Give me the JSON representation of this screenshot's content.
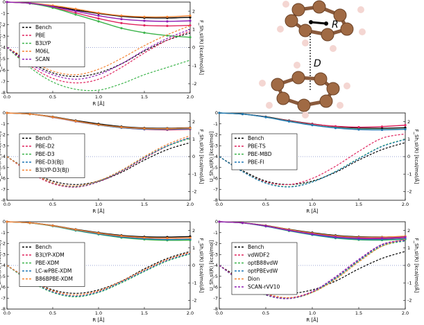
{
  "figure": {
    "x_axis_label": "R [Å]",
    "left_axis_label": "U_Sh,sl(R) [kcal/mol]",
    "right_axis_label": "F_Sh,sl(R) [kcal/mol/Å]",
    "x_ticks": [
      "0.0",
      "0.5",
      "1.0",
      "1.5",
      "2.0"
    ],
    "left_ticks": [
      "0",
      "-1",
      "-2",
      "-3",
      "-4",
      "-5",
      "-6",
      "-7",
      "-8"
    ],
    "right_ticks": [
      "2",
      "1",
      "0",
      "-1",
      "-2"
    ],
    "molecule": {
      "label_R": "R",
      "label_D": "D"
    }
  },
  "chart_data": [
    {
      "type": "line",
      "panel": "top-left",
      "x": [
        0.0,
        0.25,
        0.5,
        0.75,
        1.0,
        1.25,
        1.5,
        1.75,
        2.0
      ],
      "xlim": [
        0,
        2
      ],
      "ylim_left": [
        -8,
        0
      ],
      "ylim_right": [
        -2.5,
        2.5
      ],
      "legend_position": "left",
      "series": [
        {
          "name": "Bench",
          "color": "#000000",
          "energy": [
            0,
            -0.1,
            -0.35,
            -0.7,
            -1.0,
            -1.25,
            -1.38,
            -1.4,
            -1.35
          ],
          "force": [
            0,
            -0.8,
            -1.4,
            -1.6,
            -1.4,
            -0.9,
            -0.2,
            0.4,
            0.8
          ]
        },
        {
          "name": "PBE",
          "color": "#e0245e",
          "energy": [
            0,
            -0.12,
            -0.45,
            -0.95,
            -1.45,
            -1.85,
            -2.05,
            -2.1,
            -2.05
          ],
          "force": [
            0,
            -1.0,
            -1.7,
            -1.95,
            -1.75,
            -1.1,
            -0.3,
            0.4,
            0.9
          ]
        },
        {
          "name": "B3LYP",
          "color": "#3cb44b",
          "energy": [
            0,
            -0.12,
            -0.5,
            -1.1,
            -1.7,
            -2.3,
            -2.7,
            -2.95,
            -3.1
          ],
          "force": [
            0,
            -1.1,
            -1.9,
            -2.3,
            -2.35,
            -2.0,
            -1.5,
            -1.1,
            -0.7
          ]
        },
        {
          "name": "M06L",
          "color": "#f58231",
          "energy": [
            0,
            -0.08,
            -0.3,
            -0.6,
            -0.95,
            -1.2,
            -1.3,
            -1.3,
            -1.2
          ],
          "force": [
            0,
            -0.7,
            -1.3,
            -1.5,
            -1.2,
            -0.6,
            0.1,
            0.7,
            1.2
          ]
        },
        {
          "name": "SCAN",
          "color": "#911eb4",
          "energy": [
            0,
            -0.1,
            -0.4,
            -0.8,
            -1.2,
            -1.5,
            -1.65,
            -1.7,
            -1.65
          ],
          "force": [
            0,
            -0.9,
            -1.5,
            -1.75,
            -1.5,
            -0.9,
            -0.15,
            0.5,
            1.0
          ]
        }
      ]
    },
    {
      "type": "line",
      "panel": "middle-left",
      "x": [
        0.0,
        0.25,
        0.5,
        0.75,
        1.0,
        1.25,
        1.5,
        1.75,
        2.0
      ],
      "xlim": [
        0,
        2
      ],
      "ylim_left": [
        -8,
        0
      ],
      "ylim_right": [
        -2.5,
        2.5
      ],
      "legend_position": "left",
      "series": [
        {
          "name": "Bench",
          "color": "#000000",
          "energy": [
            0,
            -0.1,
            -0.35,
            -0.7,
            -1.0,
            -1.25,
            -1.38,
            -1.4,
            -1.35
          ],
          "force": [
            0,
            -0.8,
            -1.4,
            -1.6,
            -1.4,
            -0.9,
            -0.2,
            0.4,
            0.8
          ]
        },
        {
          "name": "PBE-D2",
          "color": "#e0245e",
          "energy": [
            0,
            -0.1,
            -0.4,
            -0.78,
            -1.1,
            -1.35,
            -1.5,
            -1.55,
            -1.5
          ],
          "force": [
            0,
            -0.9,
            -1.55,
            -1.75,
            -1.45,
            -0.85,
            -0.1,
            0.6,
            1.1
          ]
        },
        {
          "name": "PBE-D3",
          "color": "#3cb44b",
          "energy": [
            0,
            -0.1,
            -0.38,
            -0.75,
            -1.08,
            -1.32,
            -1.45,
            -1.48,
            -1.43
          ],
          "force": [
            0,
            -0.85,
            -1.5,
            -1.7,
            -1.4,
            -0.8,
            -0.05,
            0.6,
            1.05
          ]
        },
        {
          "name": "PBE-D3(BJ)",
          "color": "#1f77b4",
          "energy": [
            0,
            -0.1,
            -0.38,
            -0.76,
            -1.1,
            -1.35,
            -1.48,
            -1.5,
            -1.45
          ],
          "force": [
            0,
            -0.85,
            -1.5,
            -1.72,
            -1.42,
            -0.82,
            -0.05,
            0.62,
            1.1
          ]
        },
        {
          "name": "B3LYP-D3(BJ)",
          "color": "#f58231",
          "energy": [
            0,
            -0.1,
            -0.37,
            -0.74,
            -1.07,
            -1.3,
            -1.42,
            -1.44,
            -1.38
          ],
          "force": [
            0,
            -0.85,
            -1.48,
            -1.68,
            -1.38,
            -0.78,
            0.0,
            0.7,
            1.2
          ]
        }
      ]
    },
    {
      "type": "line",
      "panel": "middle-right",
      "x": [
        0.0,
        0.25,
        0.5,
        0.75,
        1.0,
        1.25,
        1.5,
        1.75,
        2.0
      ],
      "xlim": [
        0,
        2
      ],
      "ylim_left": [
        -8,
        0
      ],
      "ylim_right": [
        -2.5,
        2.5
      ],
      "legend_position": "left",
      "series": [
        {
          "name": "Bench",
          "color": "#000000",
          "energy": [
            0,
            -0.1,
            -0.35,
            -0.7,
            -1.0,
            -1.25,
            -1.38,
            -1.4,
            -1.35
          ],
          "force": [
            0,
            -0.8,
            -1.4,
            -1.6,
            -1.4,
            -0.9,
            -0.2,
            0.4,
            0.8
          ]
        },
        {
          "name": "PBE-TS",
          "color": "#e0245e",
          "energy": [
            0,
            -0.1,
            -0.37,
            -0.72,
            -1.02,
            -1.22,
            -1.3,
            -1.25,
            -1.12
          ],
          "force": [
            0,
            -0.85,
            -1.45,
            -1.6,
            -1.25,
            -0.55,
            0.3,
            1.05,
            1.3
          ]
        },
        {
          "name": "PBE-MBD",
          "color": "#3cb44b",
          "energy": [
            0,
            -0.1,
            -0.38,
            -0.76,
            -1.1,
            -1.36,
            -1.5,
            -1.53,
            -1.48
          ],
          "force": [
            0,
            -0.85,
            -1.5,
            -1.72,
            -1.45,
            -0.85,
            -0.1,
            0.6,
            1.0
          ]
        },
        {
          "name": "PBE-FI",
          "color": "#1f77b4",
          "energy": [
            0,
            -0.1,
            -0.39,
            -0.78,
            -1.12,
            -1.38,
            -1.52,
            -1.55,
            -1.5
          ],
          "force": [
            0,
            -0.86,
            -1.52,
            -1.74,
            -1.46,
            -0.86,
            -0.12,
            0.58,
            0.98
          ]
        }
      ]
    },
    {
      "type": "line",
      "panel": "bottom-left",
      "x": [
        0.0,
        0.25,
        0.5,
        0.75,
        1.0,
        1.25,
        1.5,
        1.75,
        2.0
      ],
      "xlim": [
        0,
        2
      ],
      "ylim_left": [
        -8,
        0
      ],
      "ylim_right": [
        -2.5,
        2.5
      ],
      "legend_position": "left",
      "series": [
        {
          "name": "Bench",
          "color": "#000000",
          "energy": [
            0,
            -0.1,
            -0.35,
            -0.7,
            -1.0,
            -1.25,
            -1.38,
            -1.4,
            -1.35
          ],
          "force": [
            0,
            -0.8,
            -1.4,
            -1.6,
            -1.4,
            -0.9,
            -0.2,
            0.4,
            0.8
          ]
        },
        {
          "name": "B3LYP-XDM",
          "color": "#e0245e",
          "energy": [
            0,
            -0.1,
            -0.38,
            -0.76,
            -1.1,
            -1.38,
            -1.55,
            -1.62,
            -1.6
          ],
          "force": [
            0,
            -0.85,
            -1.5,
            -1.75,
            -1.5,
            -0.95,
            -0.3,
            0.3,
            0.7
          ]
        },
        {
          "name": "PBE-XDM",
          "color": "#3cb44b",
          "energy": [
            0,
            -0.11,
            -0.4,
            -0.8,
            -1.15,
            -1.45,
            -1.62,
            -1.7,
            -1.68
          ],
          "force": [
            0,
            -0.9,
            -1.55,
            -1.8,
            -1.55,
            -1.0,
            -0.35,
            0.25,
            0.65
          ]
        },
        {
          "name": "LC-wPBE-XDM",
          "color": "#1f77b4",
          "energy": [
            0,
            -0.1,
            -0.38,
            -0.77,
            -1.12,
            -1.4,
            -1.56,
            -1.63,
            -1.6
          ],
          "force": [
            0,
            -0.86,
            -1.52,
            -1.76,
            -1.52,
            -0.96,
            -0.32,
            0.28,
            0.68
          ]
        },
        {
          "name": "B86BPBE-XDM",
          "color": "#f58231",
          "energy": [
            0,
            -0.1,
            -0.36,
            -0.72,
            -1.04,
            -1.3,
            -1.45,
            -1.5,
            -1.47
          ],
          "force": [
            0,
            -0.82,
            -1.45,
            -1.68,
            -1.45,
            -0.9,
            -0.25,
            0.35,
            0.75
          ]
        }
      ]
    },
    {
      "type": "line",
      "panel": "bottom-right",
      "x": [
        0.0,
        0.25,
        0.5,
        0.75,
        1.0,
        1.25,
        1.5,
        1.75,
        2.0
      ],
      "xlim": [
        0,
        2
      ],
      "ylim_left": [
        -8,
        0
      ],
      "ylim_right": [
        -2.5,
        2.5
      ],
      "legend_position": "left",
      "series": [
        {
          "name": "Bench",
          "color": "#000000",
          "energy": [
            0,
            -0.1,
            -0.35,
            -0.7,
            -1.0,
            -1.25,
            -1.38,
            -1.4,
            -1.35
          ],
          "force": [
            0,
            -0.8,
            -1.4,
            -1.6,
            -1.4,
            -0.9,
            -0.2,
            0.4,
            0.8
          ]
        },
        {
          "name": "vdWDF2",
          "color": "#e0245e",
          "energy": [
            0,
            -0.1,
            -0.4,
            -0.8,
            -1.15,
            -1.42,
            -1.55,
            -1.55,
            -1.45
          ],
          "force": [
            0,
            -0.95,
            -1.65,
            -1.85,
            -1.5,
            -0.7,
            0.3,
            1.2,
            1.45
          ]
        },
        {
          "name": "optB88vdW",
          "color": "#3cb44b",
          "energy": [
            0,
            -0.11,
            -0.42,
            -0.84,
            -1.2,
            -1.5,
            -1.65,
            -1.68,
            -1.6
          ],
          "force": [
            0,
            -0.98,
            -1.7,
            -1.9,
            -1.55,
            -0.75,
            0.25,
            1.1,
            1.4
          ]
        },
        {
          "name": "optPBEvdW",
          "color": "#1f77b4",
          "energy": [
            0,
            -0.1,
            -0.41,
            -0.82,
            -1.18,
            -1.47,
            -1.61,
            -1.63,
            -1.55
          ],
          "force": [
            0,
            -0.96,
            -1.68,
            -1.88,
            -1.52,
            -0.72,
            0.28,
            1.15,
            1.42
          ]
        },
        {
          "name": "Dion",
          "color": "#f58231",
          "energy": [
            0,
            -0.09,
            -0.36,
            -0.72,
            -1.05,
            -1.3,
            -1.42,
            -1.42,
            -1.32
          ],
          "force": [
            0,
            -0.9,
            -1.6,
            -1.85,
            -1.55,
            -0.8,
            0.2,
            1.1,
            1.5
          ]
        },
        {
          "name": "SCAN-rVV10",
          "color": "#911eb4",
          "energy": [
            0,
            -0.1,
            -0.39,
            -0.78,
            -1.12,
            -1.38,
            -1.5,
            -1.5,
            -1.4
          ],
          "force": [
            0,
            -0.95,
            -1.68,
            -1.9,
            -1.5,
            -0.65,
            0.35,
            1.2,
            1.45
          ]
        }
      ]
    }
  ]
}
